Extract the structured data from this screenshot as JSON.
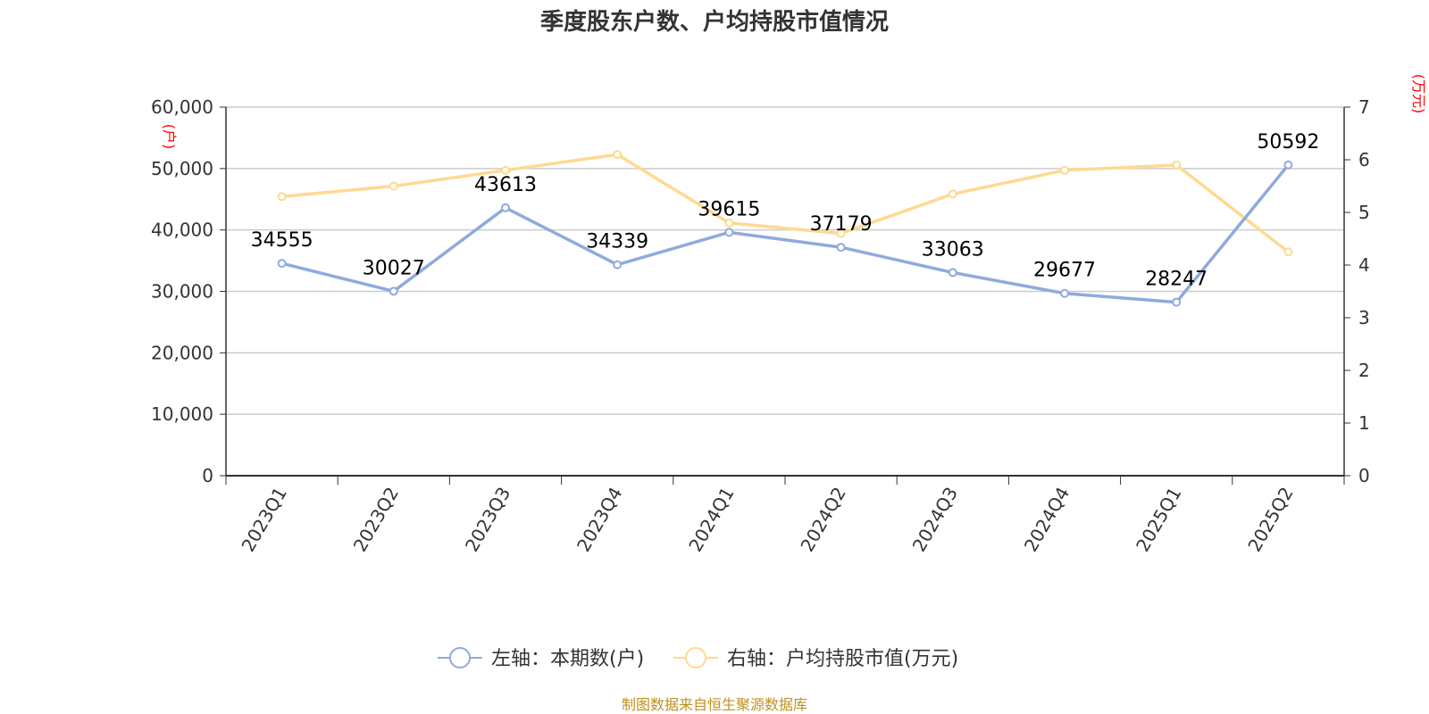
{
  "chart_data": {
    "type": "line",
    "title": "季度股东户数、户均持股市值情况",
    "categories": [
      "2023Q1",
      "2023Q2",
      "2023Q3",
      "2023Q4",
      "2024Q1",
      "2024Q2",
      "2024Q3",
      "2024Q4",
      "2025Q1",
      "2025Q2"
    ],
    "series": [
      {
        "name": "左轴：本期数(户)",
        "axis": "left",
        "color": "#8faadc",
        "values": [
          34555,
          30027,
          43613,
          34339,
          39615,
          37179,
          33063,
          29677,
          28247,
          50592
        ],
        "labels": [
          "34555",
          "30027",
          "43613",
          "34339",
          "39615",
          "37179",
          "33063",
          "29677",
          "28247",
          "50592"
        ]
      },
      {
        "name": "右轴：户均持股市值(万元)",
        "axis": "right",
        "color": "#ffd991",
        "values": [
          5.3,
          5.5,
          5.8,
          6.1,
          4.8,
          4.6,
          5.35,
          5.8,
          5.9,
          4.25
        ]
      }
    ],
    "y_left": {
      "unit": "(户)",
      "min": 0,
      "max": 60000,
      "ticks": [
        "0",
        "10,000",
        "20,000",
        "30,000",
        "40,000",
        "50,000",
        "60,000"
      ]
    },
    "y_right": {
      "unit": "(万元)",
      "min": 0,
      "max": 7,
      "ticks": [
        "0",
        "1",
        "2",
        "3",
        "4",
        "5",
        "6",
        "7"
      ]
    },
    "grid": true,
    "legend_position": "bottom-center"
  },
  "source": "制图数据来自恒生聚源数据库"
}
